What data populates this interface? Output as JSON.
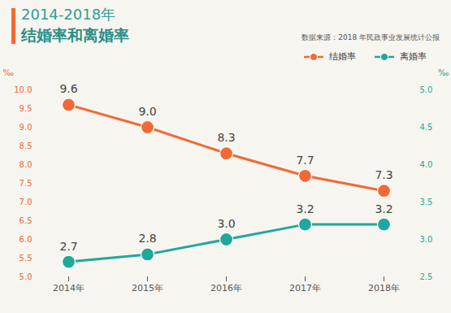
{
  "chart_data": {
    "type": "line",
    "title": "结婚率和离婚率",
    "subtitle": "2014-2018年",
    "annotations": [
      "数据来源：2018 年民政事业发展统计公报"
    ],
    "categories": [
      "2014年",
      "2015年",
      "2016年",
      "2017年",
      "2018年"
    ],
    "ylabel": "‰",
    "y2label": "‰",
    "ylim": [
      5,
      10
    ],
    "yticks": [
      {
        "value": 5,
        "label": "5.0"
      },
      5.5,
      {
        "value": 6,
        "label": "6.0"
      },
      6.5,
      {
        "value": 7,
        "label": "7.0"
      },
      7.5,
      {
        "value": 8,
        "label": "8.0"
      },
      8.5,
      {
        "value": 9,
        "label": "9.0"
      },
      9.5,
      {
        "value": 10,
        "label": "10.0"
      }
    ],
    "y2lim": [
      2.5,
      5
    ],
    "y2ticks": [
      2.5,
      {
        "value": 3,
        "label": "3.0"
      },
      3.5,
      {
        "value": 4,
        "label": "4.0"
      },
      4.5,
      {
        "value": 5,
        "label": "5.0"
      }
    ],
    "series": [
      {
        "name": "结婚率",
        "color": "#f06a35",
        "axis": "y",
        "values": [
          9.6,
          9.0,
          8.3,
          7.7,
          7.3
        ],
        "value_labels": [
          "9.6",
          "9.0",
          "8.3",
          "7.7",
          "7.3"
        ]
      },
      {
        "name": "离婚率",
        "color": "#1fa89c",
        "axis": "y2",
        "values": [
          2.7,
          2.8,
          3.0,
          3.2,
          3.2
        ],
        "value_labels": [
          "2.7",
          "2.8",
          "3.0",
          "3.2",
          "3.2"
        ]
      }
    ],
    "legend": "top-right",
    "data_labels": true,
    "grid": false,
    "marker": "circle"
  }
}
